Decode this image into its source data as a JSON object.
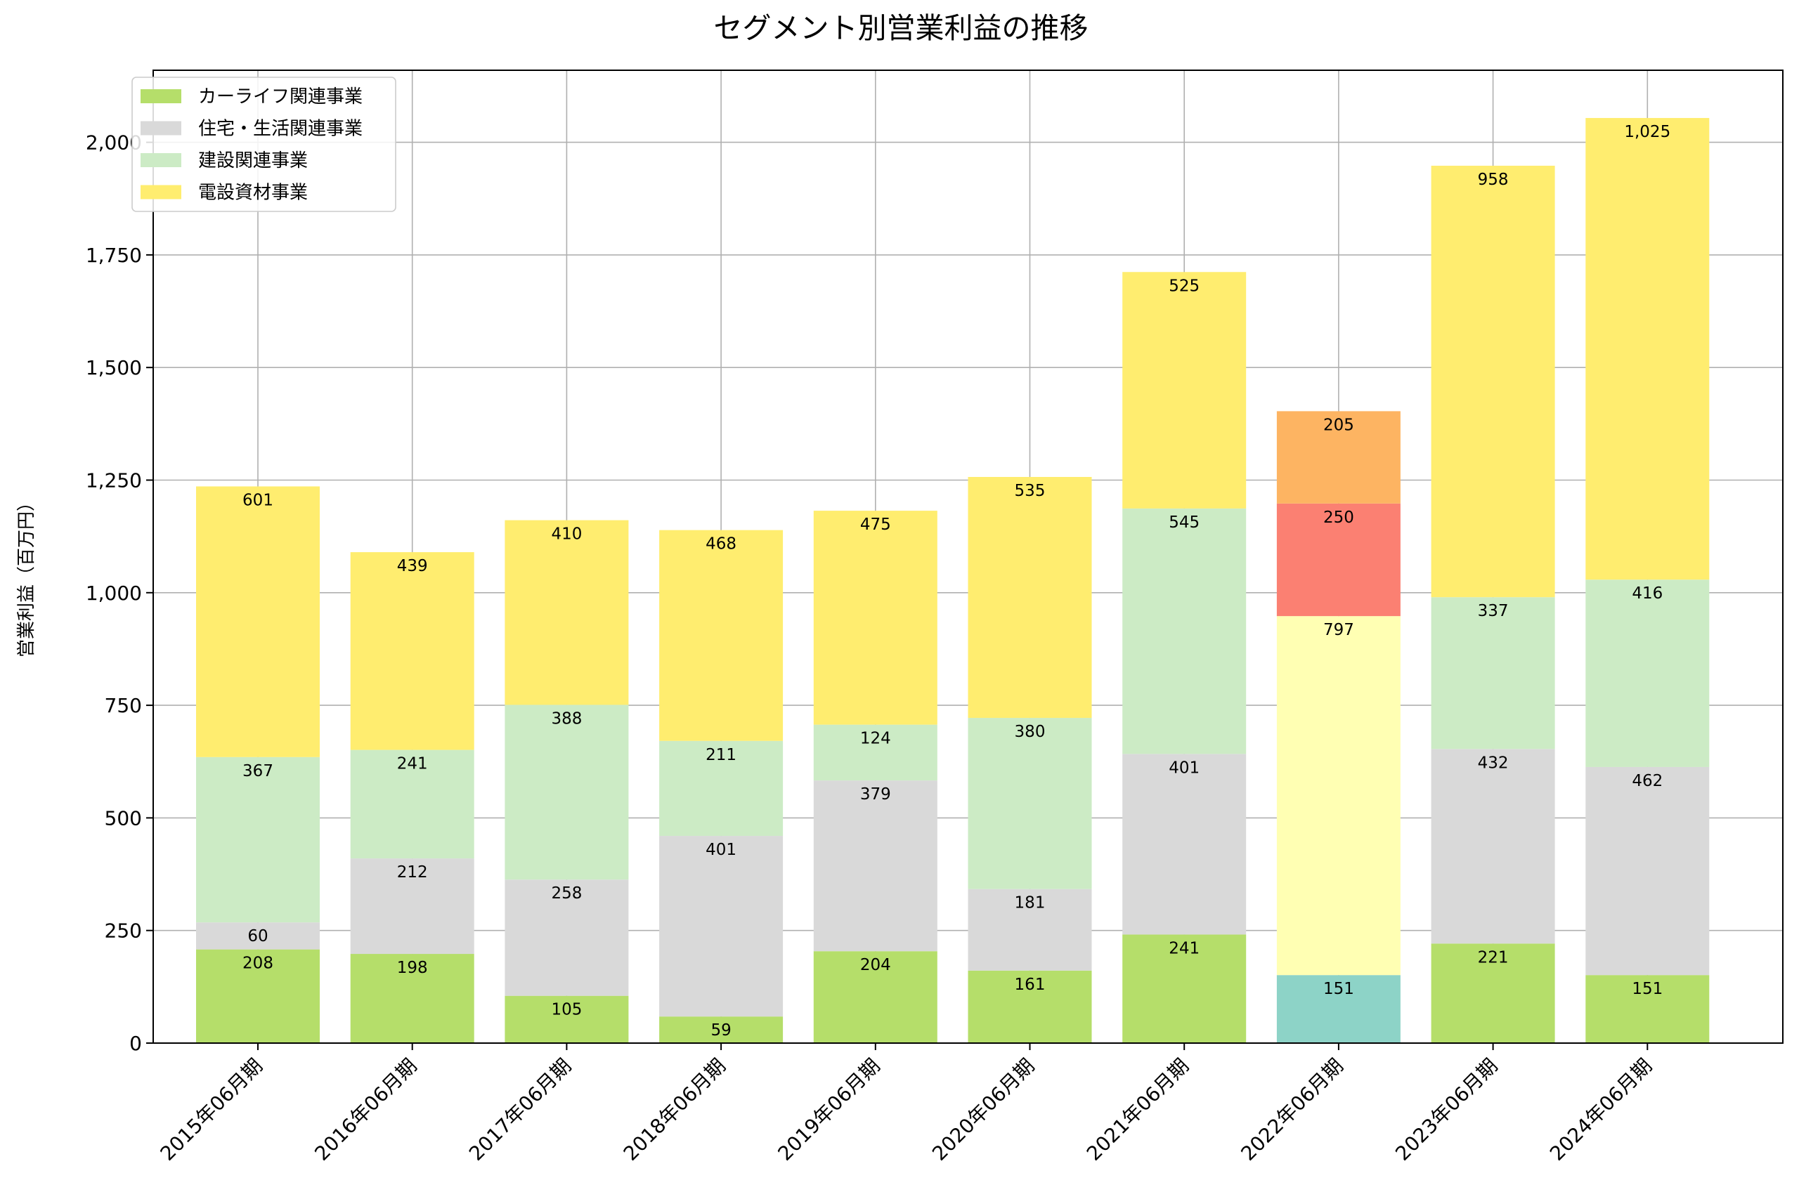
{
  "chart_data": {
    "type": "bar",
    "stacked": true,
    "title": "セグメント別営業利益の推移",
    "ylabel": "営業利益（百万円）",
    "xlabel": "",
    "ylim": [
      0,
      2160
    ],
    "yticks": [
      0,
      250,
      500,
      750,
      1000,
      1250,
      1500,
      1750,
      2000
    ],
    "ytick_labels": [
      "0",
      "250",
      "500",
      "750",
      "1,000",
      "1,250",
      "1,500",
      "1,750",
      "2,000"
    ],
    "grid": true,
    "legend_position": "top-left",
    "categories": [
      "2015年06月期",
      "2016年06月期",
      "2017年06月期",
      "2018年06月期",
      "2019年06月期",
      "2020年06月期",
      "2021年06月期",
      "2022年06月期",
      "2023年06月期",
      "2024年06月期"
    ],
    "series": [
      {
        "name": "カーライフ関連事業",
        "color": "#b5de6a",
        "values": [
          208,
          198,
          105,
          59,
          204,
          161,
          241,
          null,
          221,
          151
        ],
        "labels": [
          "208",
          "198",
          "105",
          "59",
          "204",
          "161",
          "241",
          null,
          "221",
          "151"
        ]
      },
      {
        "name": "住宅・生活関連事業",
        "color": "#d9d9d9",
        "values": [
          60,
          212,
          258,
          401,
          379,
          181,
          401,
          null,
          432,
          462
        ],
        "labels": [
          "60",
          "212",
          "258",
          "401",
          "379",
          "181",
          "401",
          null,
          "432",
          "462"
        ]
      },
      {
        "name": "建設関連事業",
        "color": "#ccebc5",
        "values": [
          367,
          241,
          388,
          211,
          124,
          380,
          545,
          null,
          337,
          416
        ],
        "labels": [
          "367",
          "241",
          "388",
          "211",
          "124",
          "380",
          "545",
          null,
          "337",
          "416"
        ]
      },
      {
        "name": "電設資材事業",
        "color": "#ffed6f",
        "values": [
          601,
          439,
          410,
          468,
          475,
          535,
          525,
          null,
          958,
          1025
        ],
        "labels": [
          "601",
          "439",
          "410",
          "468",
          "475",
          "535",
          "525",
          null,
          "958",
          "1,025"
        ]
      }
    ],
    "extra_segments": [
      {
        "category_index": 7,
        "color": "#8dd3c7",
        "value": 151,
        "label": "151"
      },
      {
        "category_index": 7,
        "color": "#ffffb3",
        "value": 797,
        "label": "797"
      },
      {
        "category_index": 7,
        "color": "#fb8072",
        "value": 250,
        "label": "250"
      },
      {
        "category_index": 7,
        "color": "#fdb462",
        "value": 205,
        "label": "205"
      }
    ]
  }
}
